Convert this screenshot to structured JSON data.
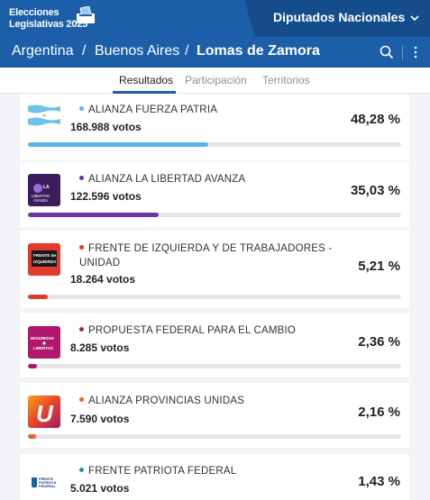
{
  "brand": {
    "line1": "Elecciones",
    "line2": "Legislativas 2025"
  },
  "menu": {
    "selected": "Diputados Nacionales"
  },
  "breadcrumb": {
    "country": "Argentina",
    "province": "Buenos Aires",
    "district": "Lomas de Zamora",
    "separator": "/"
  },
  "tabs": [
    {
      "label": "Resultados",
      "active": true
    },
    {
      "label": "Participación",
      "active": false
    },
    {
      "label": "Territorios",
      "active": false
    }
  ],
  "parties": [
    {
      "name": "ALIANZA FUERZA PATRIA",
      "votes": "168.988 votos",
      "pct": "48,28 %",
      "share": 48.28,
      "color": "#5ab4e6",
      "logo": "flag-argentina-icon"
    },
    {
      "name": "ALIANZA LA LIBERTAD AVANZA",
      "votes": "122.596 votos",
      "pct": "35,03 %",
      "share": 35.03,
      "color": "#6b34a8",
      "logo": "la-libertad-avanza-logo",
      "logo_text": "LA LIBERTAD AVANZA"
    },
    {
      "name": "FRENTE DE IZQUIERDA Y DE TRABAJADORES - UNIDAD",
      "votes": "18.264 votos",
      "pct": "5,21 %",
      "share": 5.21,
      "color": "#e23a2c",
      "logo": "frente-izquierda-logo",
      "logo_text": "FRENTE de IZQUIERDA"
    },
    {
      "name": "PROPUESTA FEDERAL PARA EL CAMBIO",
      "votes": "8.285 votos",
      "pct": "2,36 %",
      "share": 2.36,
      "color": "#b0196b",
      "logo": "seguridad-libertad-logo",
      "logo_text": "SEGURIDAD LIBERTAD"
    },
    {
      "name": "ALIANZA PROVINCIAS UNIDAS",
      "votes": "7.590 votos",
      "pct": "2,16 %",
      "share": 2.16,
      "color": "#e8642a",
      "logo": "provincias-unidas-logo",
      "logo_text": "U"
    },
    {
      "name": "FRENTE PATRIOTA FEDERAL",
      "votes": "5.021 votos",
      "pct": "1,43 %",
      "share": 1.43,
      "color": "#1f8fb3",
      "logo": "frente-patriota-federal-logo",
      "logo_text": "FRENTE PATRIOTA FEDERAL"
    }
  ]
}
